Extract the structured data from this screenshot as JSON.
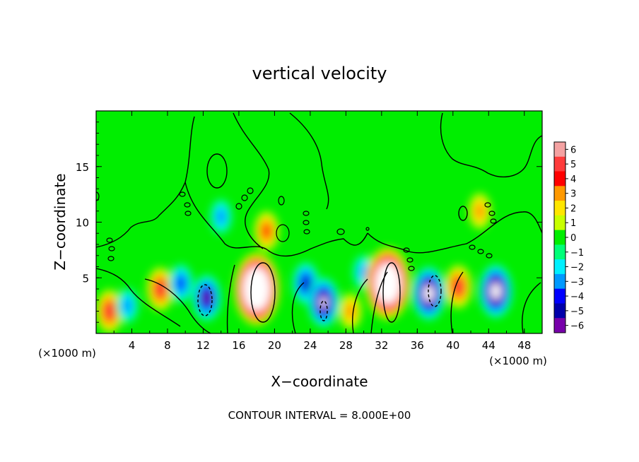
{
  "chart_data": {
    "type": "heatmap",
    "title": "vertical velocity",
    "xlabel": "X−coordinate",
    "ylabel": "Z−coordinate",
    "x_scale_note": "(×1000 m)",
    "footer": "CONTOUR INTERVAL = 8.000E+00",
    "xlim": [
      0,
      50
    ],
    "ylim": [
      0,
      20
    ],
    "x_ticks": [
      "4",
      "8",
      "12",
      "16",
      "20",
      "24",
      "28",
      "32",
      "36",
      "40",
      "44",
      "48"
    ],
    "y_ticks": [
      "5",
      "10",
      "15"
    ],
    "colorbar": {
      "levels": [
        "6",
        "5",
        "4",
        "3",
        "2",
        "1",
        "0",
        "−1",
        "−2",
        "−3",
        "−4",
        "−5",
        "−6"
      ],
      "colors": [
        "#f4a2a2",
        "#ff3c3c",
        "#ff0000",
        "#ff9900",
        "#ffe600",
        "#c8ff00",
        "#00ee00",
        "#00ff78",
        "#00f0ff",
        "#0099ff",
        "#0000ff",
        "#0000aa",
        "#7700aa"
      ]
    },
    "background_value": 0,
    "features": [
      {
        "x": 1.5,
        "z": 2.0,
        "value": 5
      },
      {
        "x": 3.5,
        "z": 2.5,
        "value": -3
      },
      {
        "x": 7.2,
        "z": 4.0,
        "value": 5
      },
      {
        "x": 9.5,
        "z": 4.5,
        "value": -4
      },
      {
        "x": 12.4,
        "z": 3.2,
        "value": -6
      },
      {
        "x": 18.0,
        "z": 4.0,
        "value": 14
      },
      {
        "x": 14.0,
        "z": 10.5,
        "value": -3
      },
      {
        "x": 19.1,
        "z": 9.2,
        "value": 4
      },
      {
        "x": 23.5,
        "z": 4.5,
        "value": -5
      },
      {
        "x": 25.5,
        "z": 2.8,
        "value": -7
      },
      {
        "x": 28.5,
        "z": 2.0,
        "value": 3
      },
      {
        "x": 30.0,
        "z": 5.5,
        "value": -3
      },
      {
        "x": 32.7,
        "z": 4.5,
        "value": 13
      },
      {
        "x": 37.3,
        "z": 3.6,
        "value": -8
      },
      {
        "x": 40.6,
        "z": 4.2,
        "value": 5
      },
      {
        "x": 43.0,
        "z": 11.0,
        "value": 3
      },
      {
        "x": 44.8,
        "z": 3.8,
        "value": -8
      }
    ]
  }
}
